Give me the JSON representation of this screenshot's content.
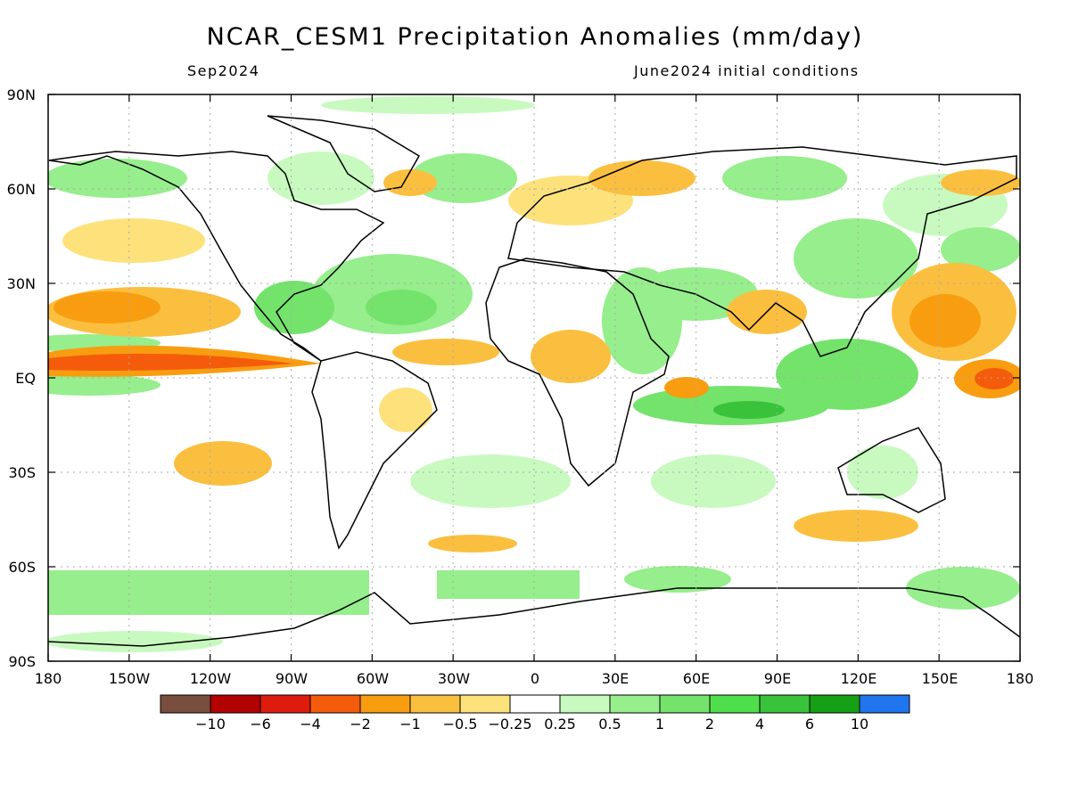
{
  "title": "NCAR_CESM1 Precipitation Anomalies (mm/day)",
  "subtitle_left": "Sep2024",
  "subtitle_right": "June2024 initial conditions",
  "lat_labels": [
    "90N",
    "60N",
    "30N",
    "EQ",
    "30S",
    "60S",
    "90S"
  ],
  "lon_labels": [
    "180",
    "150W",
    "120W",
    "90W",
    "60W",
    "30W",
    "0",
    "30E",
    "60E",
    "90E",
    "120E",
    "150E",
    "180"
  ],
  "colorbar": {
    "colors": [
      "#7a4e3e",
      "#b30000",
      "#dd1c0e",
      "#f45c0c",
      "#f99d10",
      "#fbbf3f",
      "#fde27c",
      "#ffffff",
      "#c8fac0",
      "#96ee8c",
      "#74e36c",
      "#4fde4c",
      "#38c33a",
      "#15a015",
      "#2175ed"
    ],
    "tick_labels": [
      "−10",
      "−6",
      "−4",
      "−2",
      "−1",
      "−0.5",
      "−0.25",
      "0.25",
      "0.5",
      "1",
      "2",
      "4",
      "6",
      "10"
    ]
  },
  "colors": {
    "wet_light": "#c8fac0",
    "wet_mid": "#96ee8c",
    "wet_strong": "#4fde4c",
    "dry_light": "#fde27c",
    "dry_mid": "#f99d10",
    "dry_strong": "#f45c0c"
  }
}
